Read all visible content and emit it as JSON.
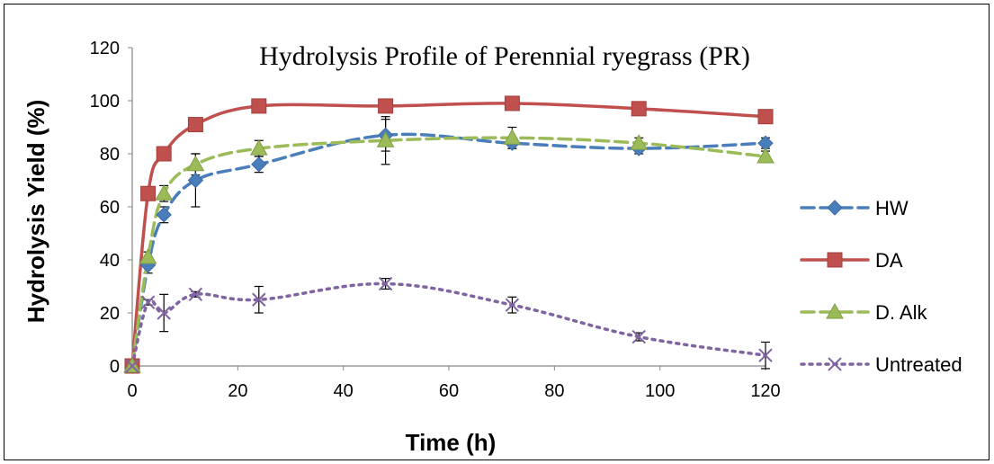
{
  "chart_data": {
    "type": "line",
    "title": "Hydrolysis Profile of Perennial ryegrass (PR)",
    "xlabel": "Time (h)",
    "ylabel": "Hydrolysis Yield (%)",
    "xlim": [
      0,
      120
    ],
    "ylim": [
      0,
      120
    ],
    "xticks": [
      0,
      20,
      40,
      60,
      80,
      100,
      120
    ],
    "yticks": [
      0,
      20,
      40,
      60,
      80,
      100,
      120
    ],
    "grid": false,
    "legend_position": "right",
    "series": [
      {
        "name": "HW",
        "color": "#4a7ebb",
        "line_style": "dashed",
        "marker": "diamond",
        "x": [
          0,
          3,
          6,
          12,
          24,
          48,
          72,
          96,
          120
        ],
        "y": [
          0,
          38,
          57,
          70,
          76,
          87,
          84,
          82,
          84
        ],
        "err": [
          0,
          3,
          3,
          10,
          3,
          6,
          2,
          2,
          2
        ]
      },
      {
        "name": "DA",
        "color": "#c0504d",
        "line_style": "solid",
        "marker": "square",
        "x": [
          0,
          3,
          6,
          12,
          24,
          48,
          72,
          96,
          120
        ],
        "y": [
          0,
          65,
          80,
          91,
          98,
          98,
          99,
          97,
          94
        ],
        "err": [
          0,
          0,
          0,
          0,
          0,
          0,
          0,
          0,
          0
        ]
      },
      {
        "name": "D. Alk",
        "color": "#9bbb59",
        "line_style": "dashed",
        "marker": "triangle",
        "x": [
          0,
          3,
          6,
          12,
          24,
          48,
          72,
          96,
          120
        ],
        "y": [
          0,
          41,
          65,
          76,
          82,
          85,
          86,
          84,
          79
        ],
        "err": [
          0,
          2,
          3,
          4,
          3,
          9,
          4,
          2,
          2
        ]
      },
      {
        "name": "Untreated",
        "color": "#8064a2",
        "line_style": "dotted",
        "marker": "x",
        "x": [
          0,
          3,
          6,
          12,
          24,
          48,
          72,
          96,
          120
        ],
        "y": [
          0,
          24,
          20,
          27,
          25,
          31,
          23,
          11,
          4
        ],
        "err": [
          0,
          1,
          7,
          1,
          5,
          2,
          3,
          1.5,
          5
        ]
      }
    ]
  }
}
